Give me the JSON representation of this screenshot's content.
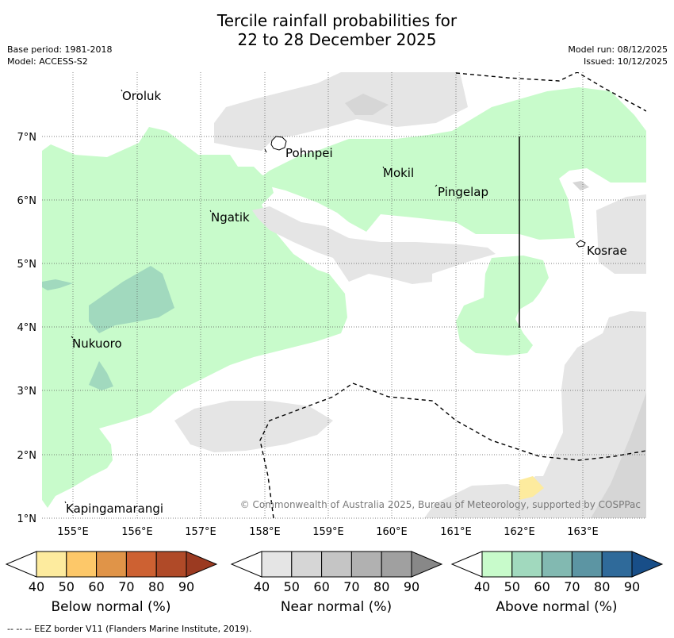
{
  "title": {
    "line1": "Tercile rainfall probabilities for",
    "line2": "22 to 28 December 2025"
  },
  "meta_left": {
    "base_period": "Base period: 1981-2018",
    "model": "Model: ACCESS-S2"
  },
  "meta_right": {
    "model_run": "Model run: 08/12/2025",
    "issued": "Issued: 10/12/2025"
  },
  "map": {
    "lon_range": [
      154.5,
      164.0
    ],
    "lat_range": [
      1.0,
      8.0
    ],
    "lon_ticks": [
      "155°E",
      "156°E",
      "157°E",
      "158°E",
      "159°E",
      "160°E",
      "161°E",
      "162°E",
      "163°E"
    ],
    "lat_ticks": [
      "7°N",
      "6°N",
      "5°N",
      "4°N",
      "3°N",
      "2°N",
      "1°N"
    ],
    "places": [
      {
        "name": "Oroluk",
        "lon": 155.75,
        "lat": 7.65
      },
      {
        "name": "Pohnpei",
        "lon": 158.3,
        "lat": 6.88
      },
      {
        "name": "Mokil",
        "lon": 159.85,
        "lat": 6.45
      },
      {
        "name": "Pingelap",
        "lon": 160.72,
        "lat": 6.2
      },
      {
        "name": "Ngatik",
        "lon": 157.15,
        "lat": 5.8
      },
      {
        "name": "Kosrae",
        "lon": 162.98,
        "lat": 5.3
      },
      {
        "name": "Nukuoro",
        "lon": 154.97,
        "lat": 3.85
      },
      {
        "name": "Kapingamarangi",
        "lon": 154.9,
        "lat": 1.25
      }
    ],
    "copyright": "© Commonwealth of Australia 2025, Bureau of Meteorology, supported by COSPPac"
  },
  "legends": [
    {
      "label": "Below normal (%)",
      "ticks": [
        "40",
        "50",
        "60",
        "70",
        "80",
        "90"
      ],
      "colors": [
        "#fdeb9e",
        "#fdc869",
        "#e09448",
        "#cd6132",
        "#b04a28",
        "#9b3a21"
      ]
    },
    {
      "label": "Near normal (%)",
      "ticks": [
        "40",
        "50",
        "60",
        "70",
        "80",
        "90"
      ],
      "colors": [
        "#e5e5e5",
        "#d6d6d6",
        "#c5c5c5",
        "#b1b1b1",
        "#a0a0a0",
        "#888888"
      ]
    },
    {
      "label": "Above normal (%)",
      "ticks": [
        "40",
        "50",
        "60",
        "70",
        "80",
        "90"
      ],
      "colors": [
        "#c8fbcb",
        "#a1d9be",
        "#82b9b1",
        "#5c95a3",
        "#2f6a9a",
        "#184e88"
      ]
    }
  ],
  "eez_note": "--  --  -- EEZ border V11 (Flanders Marine Institute, 2019)."
}
